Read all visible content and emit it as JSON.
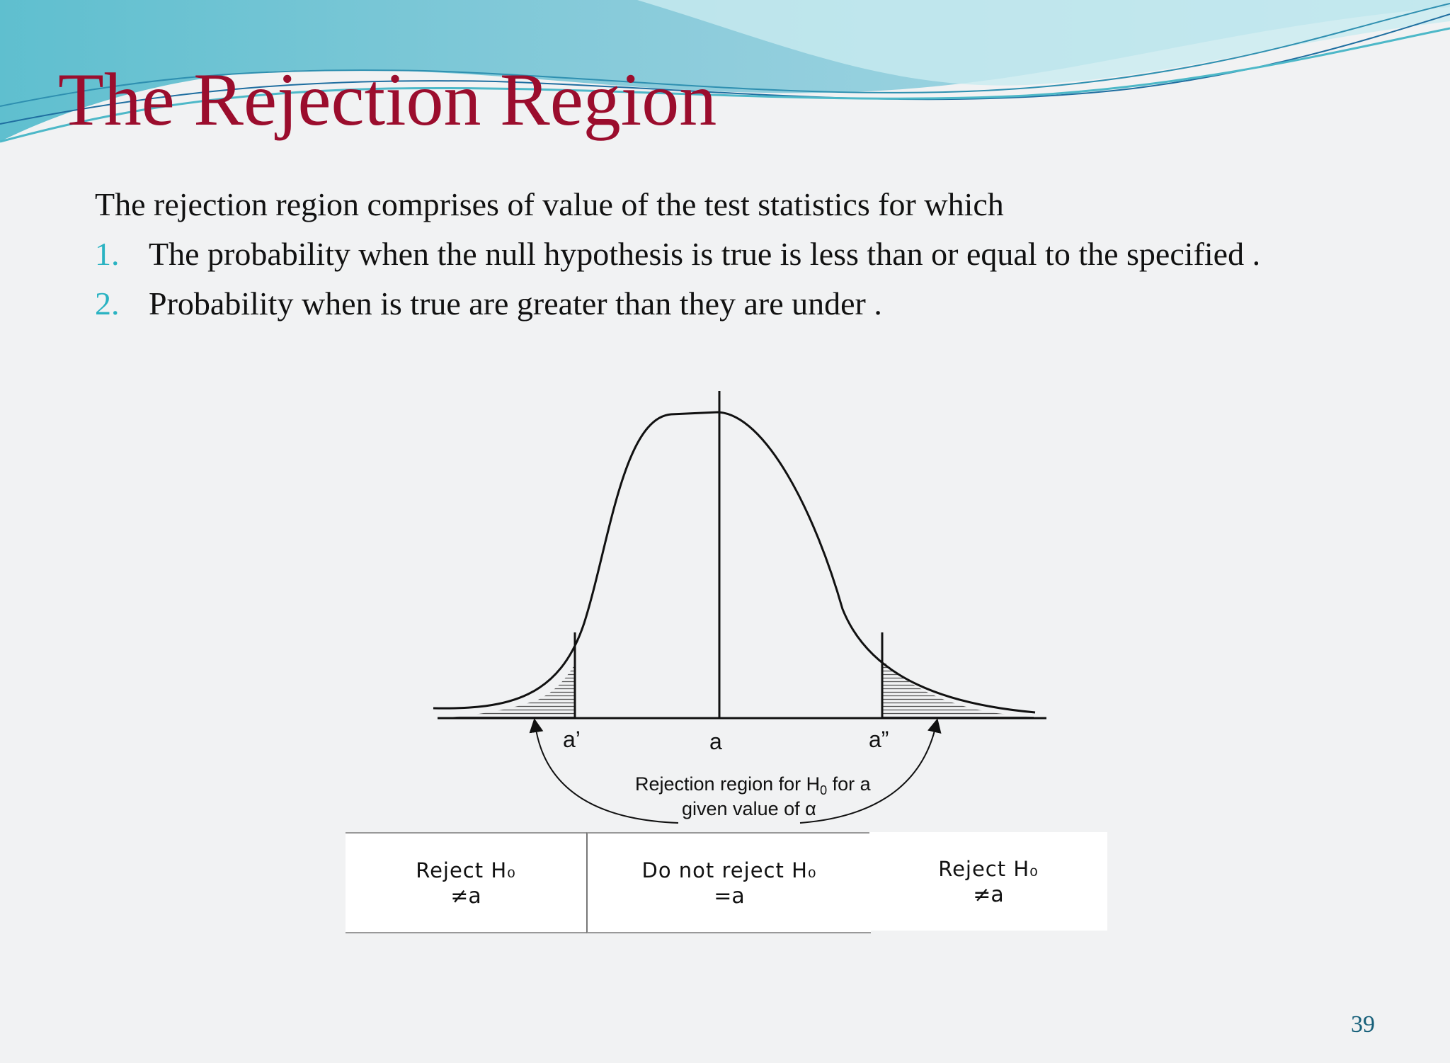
{
  "title": "The Rejection Region",
  "intro": "The rejection region comprises of value of the test statistics for which",
  "list": [
    {
      "num": "1.",
      "text": "The probability when the null hypothesis is true is less than or equal to the specified ."
    },
    {
      "num": "2.",
      "text": "Probability when is true are greater than they are under ."
    }
  ],
  "diagram": {
    "labels": {
      "left": "a’",
      "center": "a",
      "right": "a”"
    },
    "caption": {
      "line1_prefix": "Rejection region for H",
      "line1_sub": "0",
      "line1_suffix": " for a",
      "line2": "given value of α"
    }
  },
  "table": [
    {
      "line1": "Reject H₀",
      "line2": "≠a"
    },
    {
      "line1": "Do not reject H₀",
      "line2": "=a"
    },
    {
      "line1": "Reject H₀",
      "line2": "≠a"
    }
  ],
  "page_number": "39",
  "colors": {
    "title": "#9b0d2d",
    "list_number": "#2ab3c2",
    "page_number": "#17607a"
  }
}
